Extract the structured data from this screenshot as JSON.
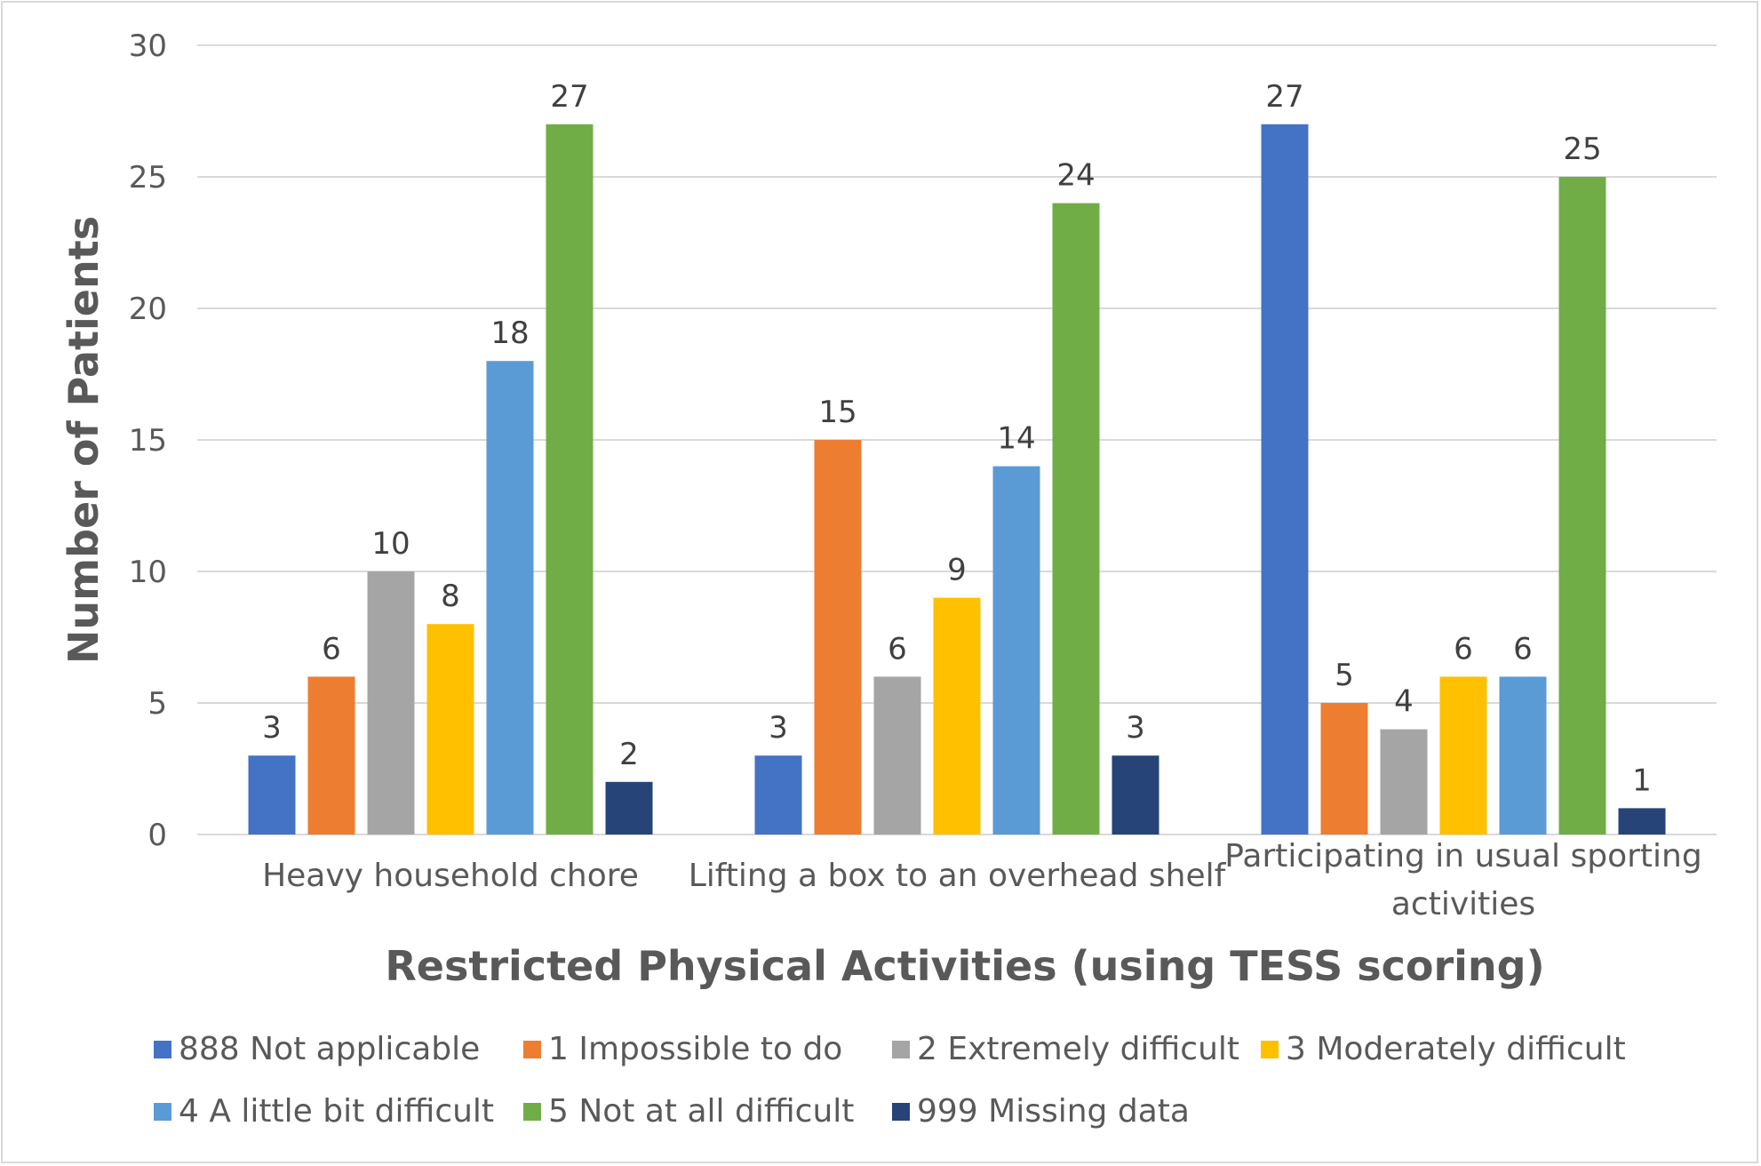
{
  "chart_data": {
    "type": "bar",
    "title": "",
    "xlabel": "Restricted Physical Activities (using TESS scoring)",
    "ylabel": "Number of Patients",
    "ylim": [
      0,
      30
    ],
    "yticks": [
      0,
      5,
      10,
      15,
      20,
      25,
      30
    ],
    "grid": true,
    "legend_position": "bottom",
    "categories": [
      [
        "Heavy household chore"
      ],
      [
        "Lifting a box to an overhead shelf"
      ],
      [
        "Participating in usual sporting",
        "activities"
      ]
    ],
    "series": [
      {
        "name": "888 Not applicable",
        "color": "#4472C4",
        "values": [
          3,
          3,
          27
        ]
      },
      {
        "name": "1 Impossible to do",
        "color": "#ED7D31",
        "values": [
          6,
          15,
          5
        ]
      },
      {
        "name": "2 Extremely difficult",
        "color": "#A5A5A5",
        "values": [
          10,
          6,
          4
        ]
      },
      {
        "name": "3 Moderately difficult",
        "color": "#FFC000",
        "values": [
          8,
          9,
          6
        ]
      },
      {
        "name": "4 A little bit difficult",
        "color": "#5B9BD5",
        "values": [
          18,
          14,
          6
        ]
      },
      {
        "name": "5 Not at all difficult",
        "color": "#70AD47",
        "values": [
          27,
          24,
          25
        ]
      },
      {
        "name": "999 Missing data",
        "color": "#264478",
        "values": [
          2,
          3,
          1
        ]
      }
    ]
  }
}
